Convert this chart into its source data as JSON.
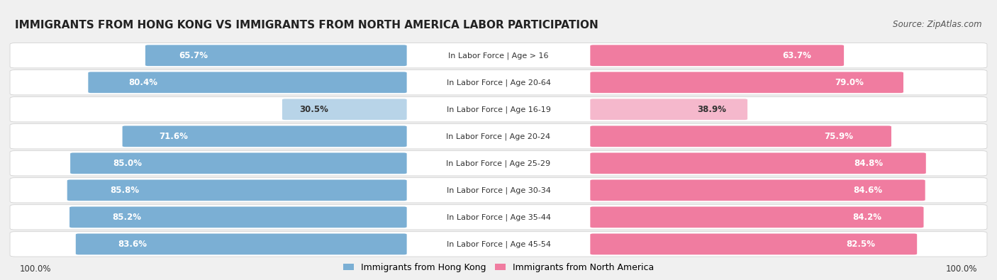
{
  "title": "IMMIGRANTS FROM HONG KONG VS IMMIGRANTS FROM NORTH AMERICA LABOR PARTICIPATION",
  "source": "Source: ZipAtlas.com",
  "categories": [
    "In Labor Force | Age > 16",
    "In Labor Force | Age 20-64",
    "In Labor Force | Age 16-19",
    "In Labor Force | Age 20-24",
    "In Labor Force | Age 25-29",
    "In Labor Force | Age 30-34",
    "In Labor Force | Age 35-44",
    "In Labor Force | Age 45-54"
  ],
  "hk_values": [
    65.7,
    80.4,
    30.5,
    71.6,
    85.0,
    85.8,
    85.2,
    83.6
  ],
  "na_values": [
    63.7,
    79.0,
    38.9,
    75.9,
    84.8,
    84.6,
    84.2,
    82.5
  ],
  "hk_color": "#7bafd4",
  "hk_color_light": "#b8d4e8",
  "na_color": "#f07ca0",
  "na_color_light": "#f5b8cc",
  "label_hk": "Immigrants from Hong Kong",
  "label_na": "Immigrants from North America",
  "background_color": "#f0f0f0",
  "bar_bg_color": "#ffffff",
  "title_fontsize": 11,
  "source_fontsize": 8.5,
  "legend_fontsize": 9,
  "bar_label_fontsize": 8.5,
  "category_fontsize": 8,
  "max_val": 100.0
}
